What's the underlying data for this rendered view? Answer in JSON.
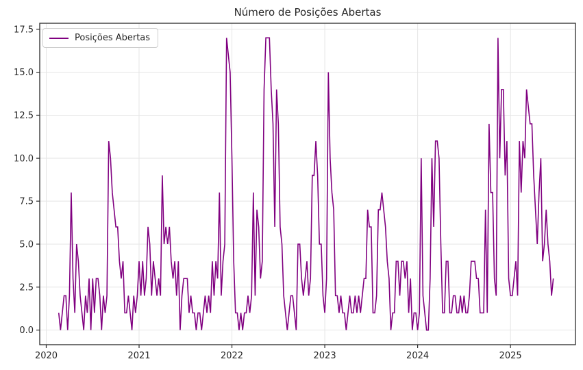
{
  "title": "Número de Posições Abertas",
  "legend": {
    "label": "Posições Abertas"
  },
  "colors": {
    "line": "#800080",
    "grid": "#e5e5e5",
    "spine": "#2b2b2b",
    "background": "#ffffff",
    "text": "#262626"
  },
  "chart_data": {
    "type": "line",
    "title": "Número de Posições Abertas",
    "xlabel": "",
    "ylabel": "",
    "legend_position": "upper left",
    "grid": true,
    "xlim": [
      2019.93,
      2025.7
    ],
    "ylim": [
      -0.85,
      17.85
    ],
    "xticks": [
      2020,
      2021,
      2022,
      2023,
      2024,
      2025
    ],
    "yticks": [
      0.0,
      2.5,
      5.0,
      7.5,
      10.0,
      12.5,
      15.0,
      17.5
    ],
    "series": [
      {
        "name": "Posições Abertas",
        "color": "#800080",
        "x_start": 2020.1346,
        "x_step": 0.019231,
        "x_unit": "year (weekly samples)",
        "values": [
          1,
          0,
          1,
          2,
          2,
          0,
          2,
          8,
          3,
          1,
          5,
          4,
          2,
          1,
          0,
          2,
          1,
          3,
          0,
          3,
          1,
          3,
          3,
          2,
          0,
          2,
          1,
          2,
          11,
          10,
          8,
          7,
          6,
          6,
          4,
          3,
          4,
          1,
          1,
          2,
          1,
          0,
          2,
          1,
          2,
          4,
          2,
          4,
          2,
          3,
          6,
          5,
          2,
          4,
          3,
          2,
          3,
          2,
          9,
          5,
          6,
          5,
          6,
          4,
          3,
          4,
          2,
          4,
          0,
          2,
          3,
          3,
          3,
          1,
          2,
          1,
          1,
          0,
          1,
          1,
          0,
          1,
          2,
          1,
          2,
          1,
          4,
          2,
          4,
          3,
          8,
          2,
          4,
          5,
          17,
          16,
          15,
          10,
          4,
          1,
          1,
          0,
          1,
          0,
          1,
          1,
          2,
          1,
          2,
          8,
          2,
          7,
          6,
          3,
          4,
          14,
          17,
          17,
          17,
          14,
          12,
          6,
          14,
          12,
          6,
          5,
          2,
          1,
          0,
          1,
          2,
          2,
          1,
          0,
          5,
          5,
          3,
          2,
          3,
          4,
          2,
          3,
          9,
          9,
          11,
          9,
          5,
          5,
          2,
          1,
          3,
          15,
          10,
          8,
          7,
          2,
          2,
          1,
          2,
          1,
          1,
          0,
          1,
          2,
          1,
          1,
          2,
          1,
          2,
          1,
          2,
          3,
          3,
          7,
          6,
          6,
          1,
          1,
          2,
          7,
          7,
          8,
          7,
          6,
          4,
          3,
          0,
          1,
          1,
          4,
          4,
          2,
          4,
          4,
          3,
          4,
          1,
          3,
          0,
          1,
          1,
          0,
          1,
          10,
          2,
          1,
          0,
          0,
          3,
          10,
          6,
          11,
          11,
          10,
          5,
          1,
          1,
          4,
          4,
          1,
          1,
          2,
          2,
          1,
          1,
          2,
          1,
          2,
          1,
          1,
          2,
          4,
          4,
          4,
          3,
          3,
          1,
          1,
          1,
          7,
          1,
          12,
          8,
          8,
          3,
          2,
          17,
          10,
          14,
          14,
          9,
          11,
          3,
          2,
          2,
          3,
          4,
          2,
          11,
          8,
          11,
          10,
          14,
          13,
          12,
          12,
          9,
          7,
          5,
          8,
          10,
          4,
          5,
          7,
          5,
          4,
          2,
          3
        ]
      }
    ]
  }
}
